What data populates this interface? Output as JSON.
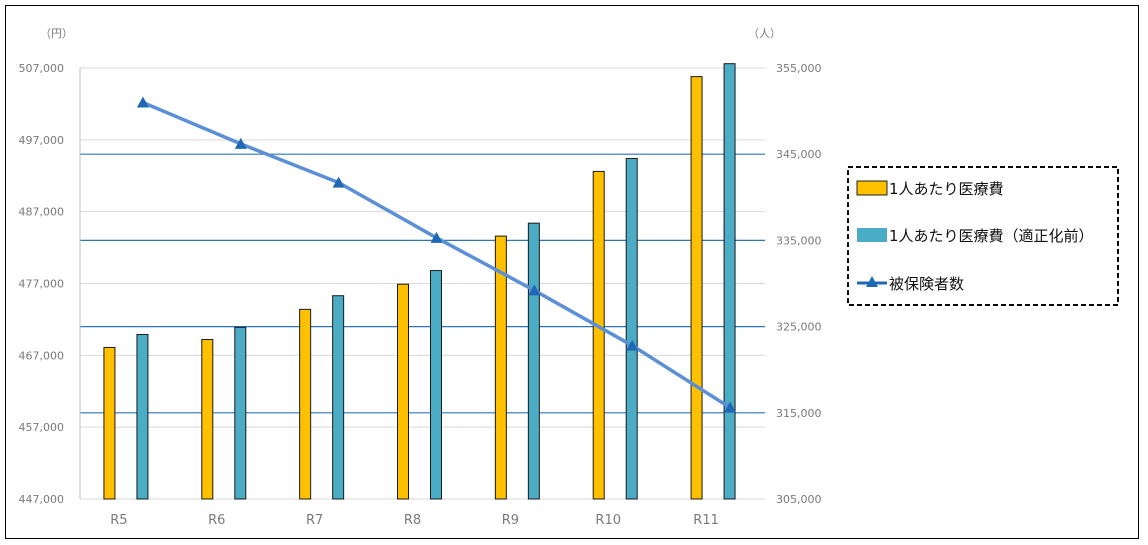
{
  "chart_data": {
    "type": "bar",
    "categories": [
      "R5",
      "R6",
      "R7",
      "R8",
      "R9",
      "R10",
      "R11"
    ],
    "series": [
      {
        "name": "1人あたり医療費",
        "kind": "bar",
        "axis": "left",
        "color": "#FFC000",
        "values": [
          468100,
          469200,
          473400,
          476900,
          483600,
          492600,
          505800
        ]
      },
      {
        "name": "1人あたり医療費（適正化前）",
        "kind": "bar",
        "axis": "left",
        "color": "#4BACC6",
        "values": [
          469900,
          470900,
          475300,
          478800,
          485400,
          494400,
          507600
        ]
      },
      {
        "name": "被保険者数",
        "kind": "line",
        "axis": "right",
        "color": "#5B8FD6",
        "values": [
          351000,
          346200,
          341700,
          335300,
          329200,
          322800,
          315600
        ]
      }
    ],
    "y_left": {
      "unit": "（円）",
      "range": [
        447000,
        507000
      ],
      "ticks": [
        "447,000",
        "457,000",
        "467,000",
        "477,000",
        "487,000",
        "497,000",
        "507,000"
      ]
    },
    "y_right": {
      "unit": "（人）",
      "range": [
        305000,
        355000
      ],
      "ticks": [
        "305,000",
        "315,000",
        "325,000",
        "335,000",
        "345,000",
        "355,000"
      ]
    },
    "grid": true,
    "legend": "right"
  }
}
